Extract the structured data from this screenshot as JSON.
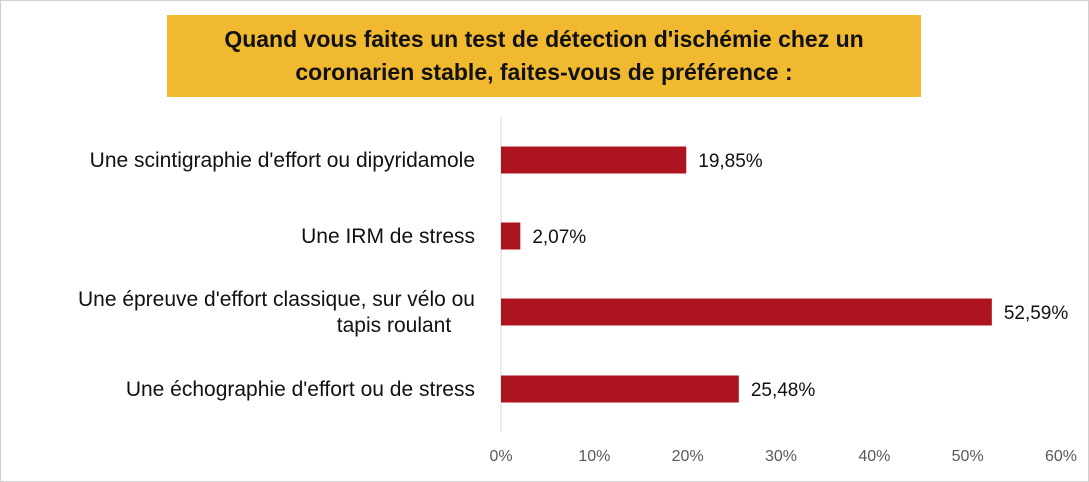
{
  "colors": {
    "bar": "#ae1420",
    "title_background": "#f0b92f",
    "axis": "#d9d9d9",
    "text": "#111111",
    "tick_text": "#595959"
  },
  "chart_data": {
    "type": "bar",
    "orientation": "horizontal",
    "title": "Quand vous faites un test de détection d'ischémie chez un\ncoronarien stable, faites-vous de préférence :",
    "categories": [
      [
        "Une scintigraphie d'effort ou dipyridamole"
      ],
      [
        "Une IRM de stress"
      ],
      [
        "Une épreuve d'effort classique, sur vélo ou",
        "tapis roulant"
      ],
      [
        "Une échographie d'effort ou de stress"
      ]
    ],
    "values": [
      19.85,
      2.07,
      52.59,
      25.48
    ],
    "data_labels": [
      "19,85%",
      "2,07%",
      "52,59%",
      "25,48%"
    ],
    "xlim": [
      0,
      60
    ],
    "x_ticks": [
      0,
      10,
      20,
      30,
      40,
      50,
      60
    ],
    "x_tick_labels": [
      "0%",
      "10%",
      "20%",
      "30%",
      "40%",
      "50%",
      "60%"
    ],
    "grid": false,
    "legend": "none"
  }
}
